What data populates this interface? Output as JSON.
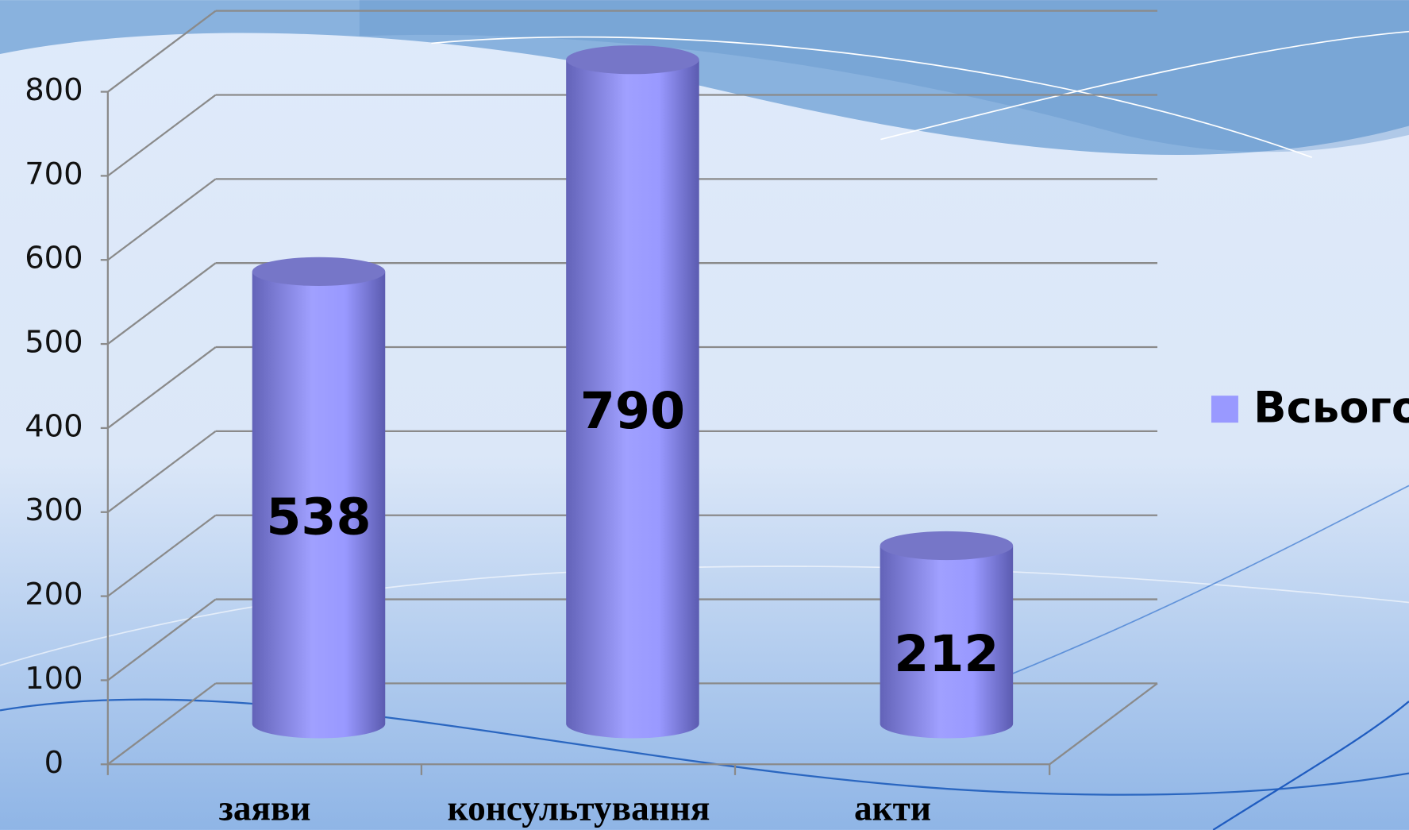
{
  "chart_data": {
    "type": "bar",
    "categories": [
      "заяви",
      "консультування",
      "акти"
    ],
    "series": [
      {
        "name": "Всього",
        "color": "#9999ff",
        "values": [
          538,
          790,
          212
        ]
      }
    ],
    "ylim": [
      0,
      800
    ],
    "yticks": [
      0,
      100,
      200,
      300,
      400,
      500,
      600,
      700,
      800
    ],
    "grid": true,
    "legend": "right"
  }
}
